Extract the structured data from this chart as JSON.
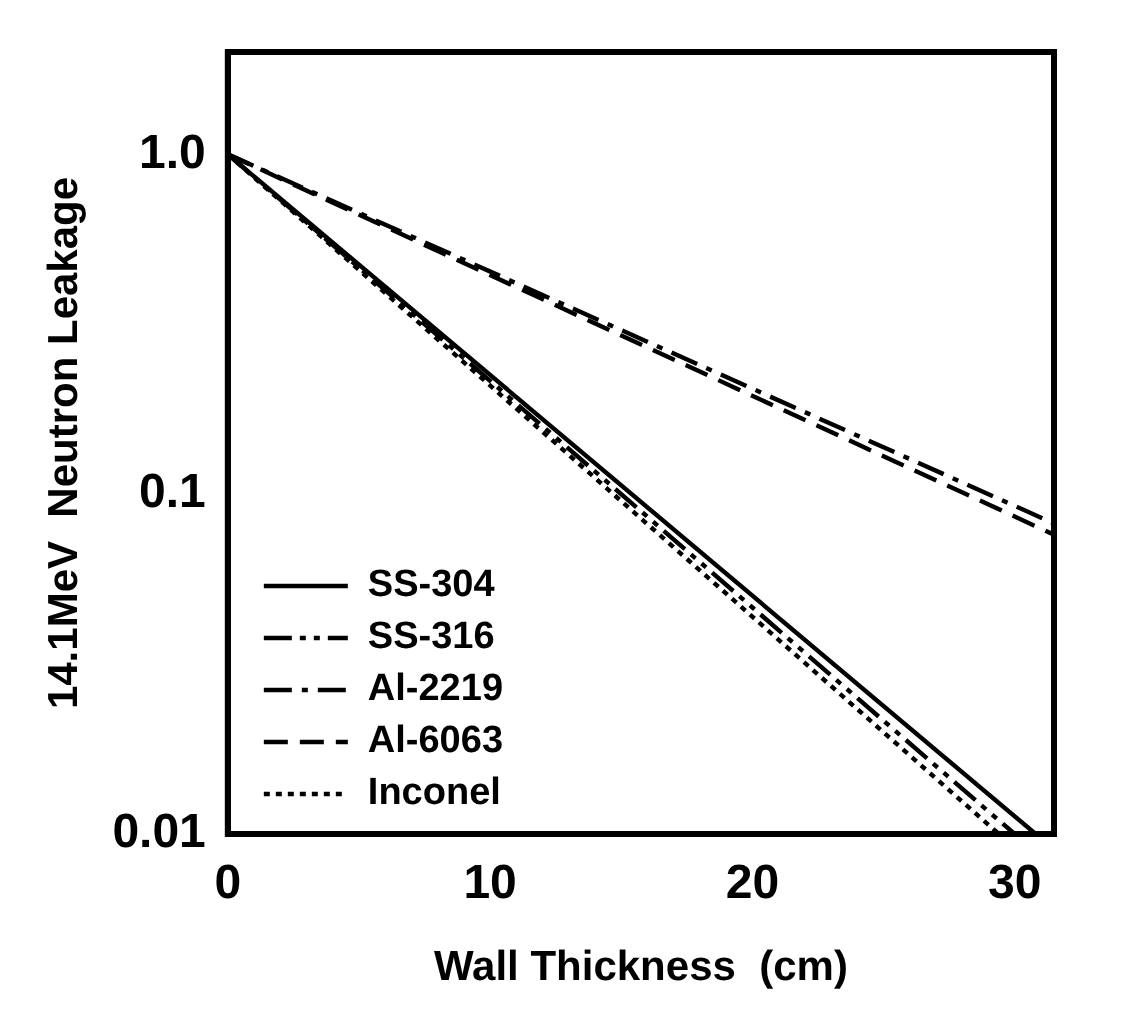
{
  "chart_data": {
    "type": "line",
    "xlabel": "Wall Thickness  (cm)",
    "ylabel": "14.1MeV  Neutron Leakage",
    "log": "y",
    "xlim": [
      0,
      31.5
    ],
    "ylim": [
      0.01,
      2
    ],
    "xticks": [
      0,
      10,
      20,
      30
    ],
    "yticks": [
      0.01,
      0.1,
      {
        "value": 1,
        "label": "1.0"
      }
    ],
    "grid": false,
    "legend": "bottom left",
    "marker": "none",
    "series": [
      {
        "name": "SS-304",
        "color": "#000000",
        "line_style": "solid",
        "x": [
          0,
          30.8
        ],
        "values": [
          1,
          0.01
        ]
      },
      {
        "name": "SS-316",
        "color": "#000000",
        "line_style": "dashdotdot",
        "x": [
          0,
          30.0
        ],
        "values": [
          1,
          0.01
        ]
      },
      {
        "name": "Al-2219",
        "color": "#000000",
        "line_style": "dashdot",
        "x": [
          0,
          31.5
        ],
        "values": [
          1,
          0.082
        ]
      },
      {
        "name": "Al-6063",
        "color": "#000000",
        "line_style": "dashed",
        "x": [
          0,
          31.5
        ],
        "values": [
          1,
          0.076
        ]
      },
      {
        "name": "Inconel",
        "color": "#000000",
        "line_style": "dotted",
        "x": [
          0,
          29.4
        ],
        "values": [
          1,
          0.01
        ]
      }
    ]
  }
}
